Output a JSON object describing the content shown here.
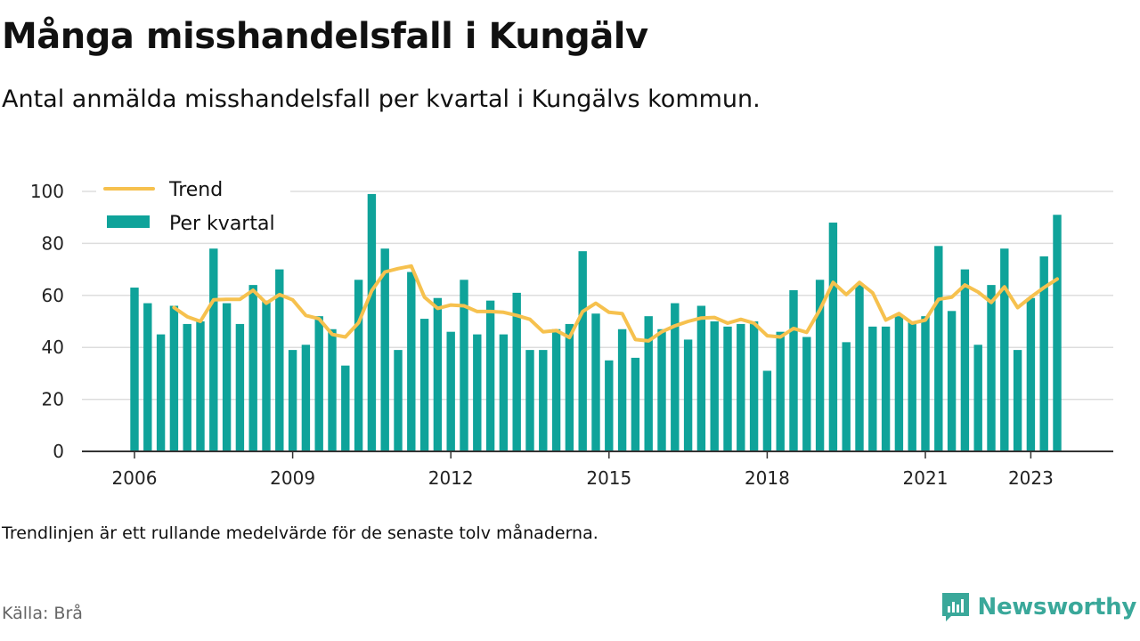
{
  "header": {
    "title": "Många misshandelsfall i Kungälv",
    "subtitle": "Antal anmälda misshandelsfall per kvartal i Kungälvs kommun."
  },
  "footer": {
    "note": "Trendlinjen är ett rullande medelvärde för de senaste tolv månaderna.",
    "source": "Källa: Brå",
    "brand": "Newsworthy"
  },
  "colors": {
    "bar": "#0fa39a",
    "trend": "#f6c14e",
    "brand": "#3aa89a"
  },
  "chart_data": {
    "type": "bar",
    "ylim": [
      0,
      100
    ],
    "yticks": [
      0,
      20,
      40,
      60,
      80,
      100
    ],
    "xticks": [
      "2006",
      "2009",
      "2012",
      "2015",
      "2018",
      "2021",
      "2023"
    ],
    "grid": true,
    "legend_position": "top-left",
    "x": [
      "2006 Q1",
      "2006 Q2",
      "2006 Q3",
      "2006 Q4",
      "2007 Q1",
      "2007 Q2",
      "2007 Q3",
      "2007 Q4",
      "2008 Q1",
      "2008 Q2",
      "2008 Q3",
      "2008 Q4",
      "2009 Q1",
      "2009 Q2",
      "2009 Q3",
      "2009 Q4",
      "2010 Q1",
      "2010 Q2",
      "2010 Q3",
      "2010 Q4",
      "2011 Q1",
      "2011 Q2",
      "2011 Q3",
      "2011 Q4",
      "2012 Q1",
      "2012 Q2",
      "2012 Q3",
      "2012 Q4",
      "2013 Q1",
      "2013 Q2",
      "2013 Q3",
      "2013 Q4",
      "2014 Q1",
      "2014 Q2",
      "2014 Q3",
      "2014 Q4",
      "2015 Q1",
      "2015 Q2",
      "2015 Q3",
      "2015 Q4",
      "2016 Q1",
      "2016 Q2",
      "2016 Q3",
      "2016 Q4",
      "2017 Q1",
      "2017 Q2",
      "2017 Q3",
      "2017 Q4",
      "2018 Q1",
      "2018 Q2",
      "2018 Q3",
      "2018 Q4",
      "2019 Q1",
      "2019 Q2",
      "2019 Q3",
      "2019 Q4",
      "2020 Q1",
      "2020 Q2",
      "2020 Q3",
      "2020 Q4",
      "2021 Q1",
      "2021 Q2",
      "2021 Q3",
      "2021 Q4",
      "2022 Q1",
      "2022 Q2",
      "2022 Q3",
      "2022 Q4",
      "2023 Q1",
      "2023 Q2",
      "2023 Q3",
      "2023 Q4"
    ],
    "series": [
      {
        "name": "Per kvartal",
        "type": "bar",
        "values": [
          63,
          57,
          45,
          56,
          49,
          50,
          78,
          57,
          49,
          64,
          58,
          70,
          39,
          41,
          52,
          47,
          33,
          66,
          99,
          78,
          39,
          69,
          51,
          59,
          46,
          66,
          45,
          58,
          45,
          61,
          39,
          39,
          47,
          49,
          77,
          53,
          35,
          47,
          36,
          52,
          47,
          57,
          43,
          56,
          50,
          48,
          49,
          50,
          31,
          46,
          62,
          44,
          66,
          88,
          42,
          64,
          48,
          48,
          52,
          50,
          52,
          79,
          54,
          70,
          41,
          64,
          78,
          39,
          59,
          75,
          91,
          null
        ]
      },
      {
        "name": "Trend",
        "type": "line",
        "values": [
          null,
          null,
          null,
          55.3,
          51.8,
          50,
          58.3,
          58.5,
          58.5,
          62,
          57,
          60.3,
          58.3,
          52.3,
          51,
          45,
          44,
          49.5,
          61.8,
          69,
          70.3,
          71.3,
          59.3,
          55,
          56.3,
          56,
          53.8,
          53.8,
          53.5,
          52.3,
          50.8,
          46,
          46.5,
          43.8,
          53.8,
          57,
          53.5,
          53,
          43,
          42.5,
          46,
          48.3,
          50,
          51.3,
          51.5,
          49.3,
          50.8,
          49.3,
          44.5,
          44,
          47.3,
          45.8,
          54.5,
          65,
          60.3,
          65,
          61,
          50.5,
          53,
          49.3,
          50.5,
          58.5,
          59.3,
          64,
          61.3,
          57.3,
          63.3,
          55.3,
          59.3,
          63,
          66.3,
          null
        ]
      }
    ]
  }
}
